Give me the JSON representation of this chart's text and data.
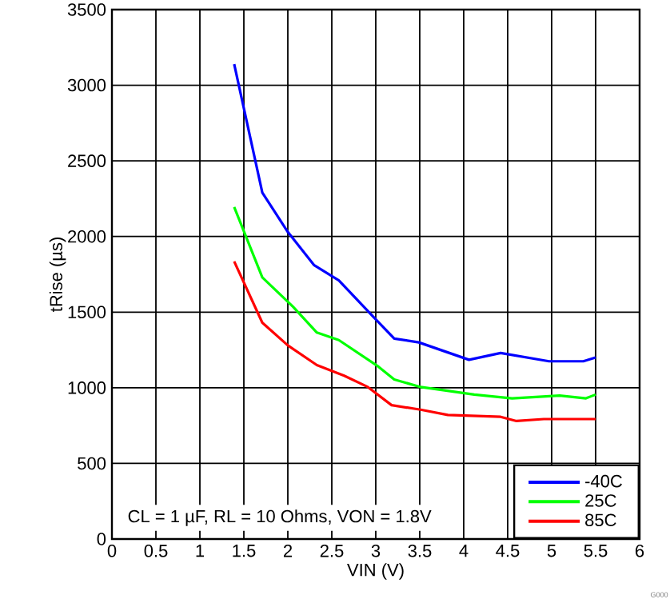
{
  "chart_data": {
    "type": "line",
    "xlabel": "VIN (V)",
    "ylabel": "tRise (µs)",
    "xlim": [
      0,
      6
    ],
    "xticks": [
      0,
      0.5,
      1,
      1.5,
      2,
      2.5,
      3,
      3.5,
      4,
      4.5,
      5,
      5.5,
      6
    ],
    "ylim": [
      0,
      3500
    ],
    "yticks": [
      0,
      500,
      1000,
      1500,
      2000,
      2500,
      3000,
      3500
    ],
    "grid": true,
    "legend": "bottom right",
    "marker": "none",
    "line_style": "solid",
    "annotations": [
      "CL = 1 µF, RL = 10 Ohms, VON = 1.8V",
      "G000"
    ],
    "series": [
      {
        "name": "-40C",
        "color": "#0000ff",
        "x": [
          1.39,
          1.71,
          2.0,
          2.3,
          2.58,
          2.97,
          3.21,
          3.49,
          4.06,
          4.42,
          4.97,
          5.36,
          5.5
        ],
        "values": [
          3140,
          2290,
          2030,
          1810,
          1710,
          1470,
          1325,
          1300,
          1185,
          1230,
          1175,
          1175,
          1200
        ]
      },
      {
        "name": "25C",
        "color": "#00ff00",
        "x": [
          1.39,
          1.71,
          2.06,
          2.33,
          2.58,
          3.03,
          3.21,
          3.51,
          4.12,
          4.55,
          5.09,
          5.39,
          5.5
        ],
        "values": [
          2195,
          1730,
          1535,
          1365,
          1315,
          1140,
          1055,
          1005,
          955,
          930,
          948,
          930,
          955
        ]
      },
      {
        "name": "85C",
        "color": "#ff0000",
        "x": [
          1.39,
          1.71,
          2.0,
          2.33,
          2.64,
          2.91,
          3.18,
          3.51,
          3.82,
          4.42,
          4.6,
          4.91,
          5.5
        ],
        "values": [
          1835,
          1430,
          1280,
          1150,
          1080,
          1005,
          885,
          855,
          820,
          808,
          780,
          793,
          793
        ]
      }
    ]
  }
}
